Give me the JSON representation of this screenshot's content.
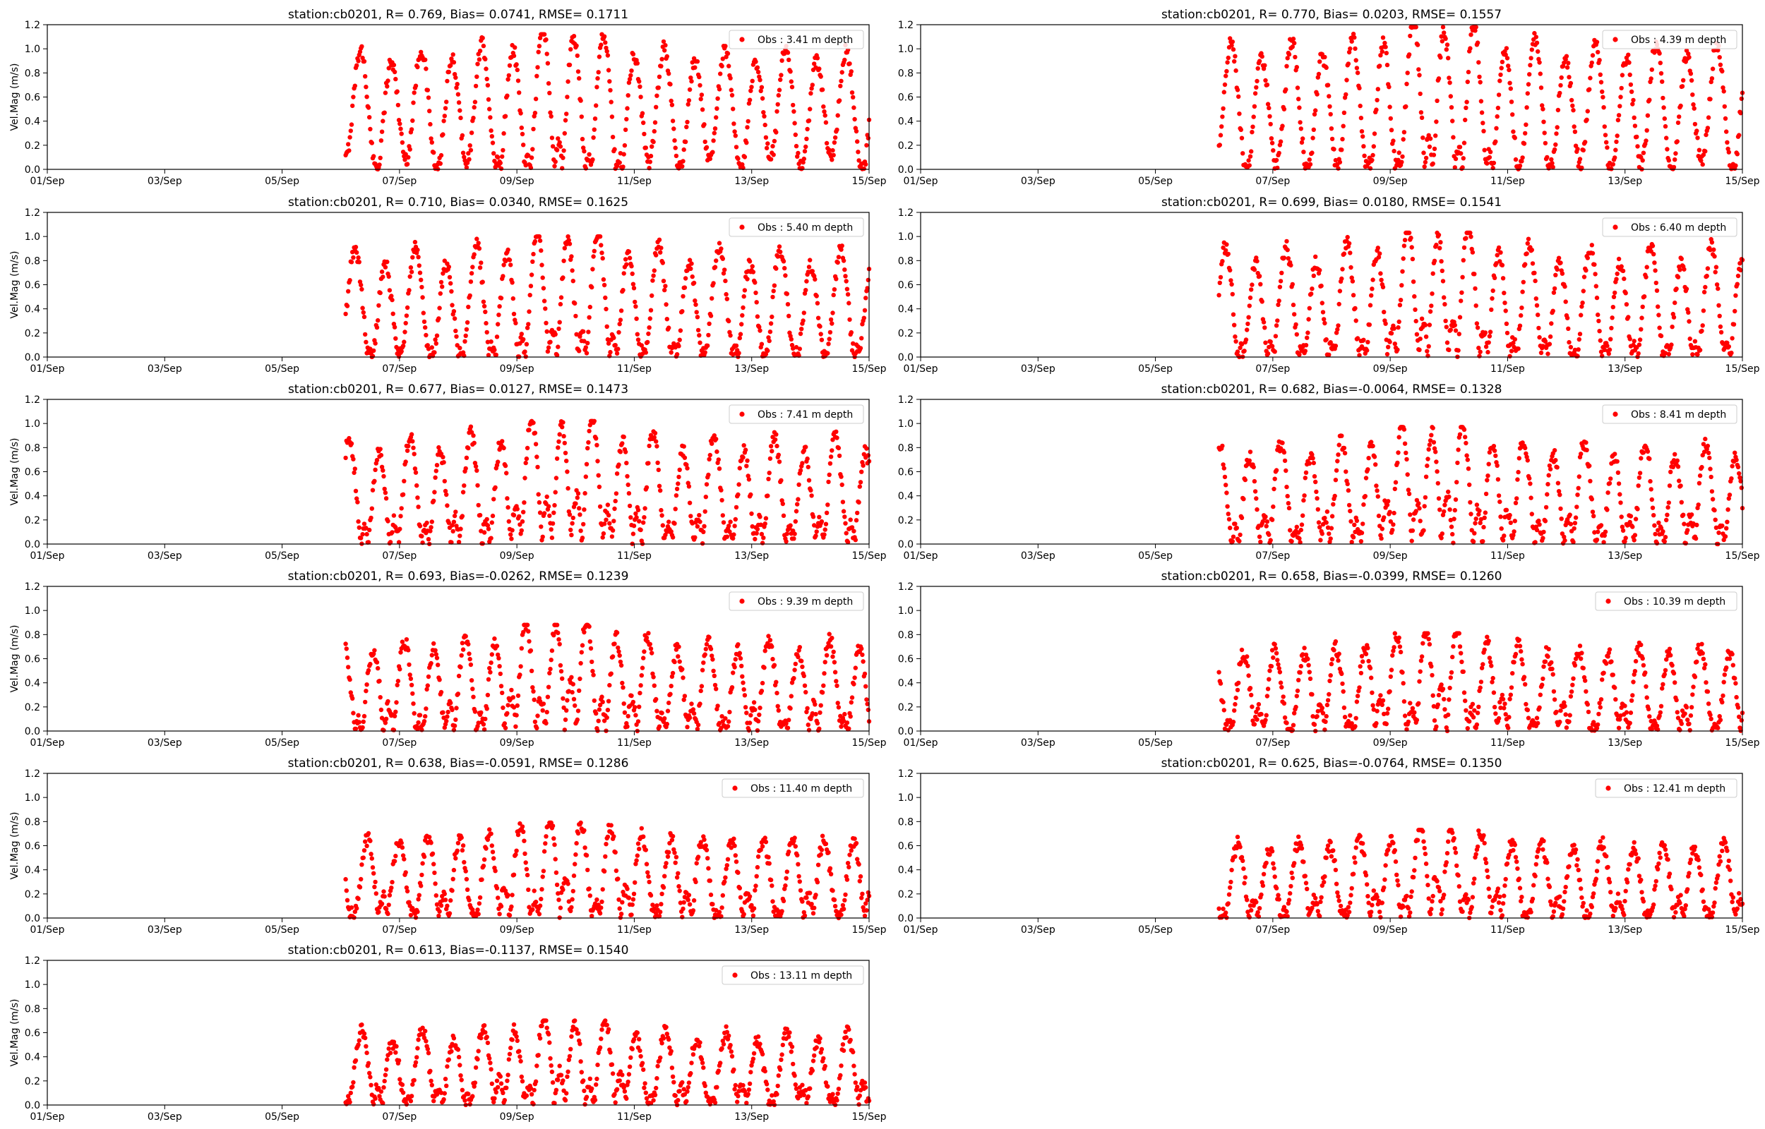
{
  "figure": {
    "background": "#ffffff",
    "marker_color": "#ff0000",
    "frame_color": "#000000"
  },
  "chart_data": [
    {
      "type": "scatter",
      "title": "station:cb0201, R= 0.769, Bias= 0.0741, RMSE= 0.1711",
      "xlabel": "",
      "ylabel": "Vel.Mag (m/s)",
      "xlim": [
        "01/Sep",
        "15/Sep"
      ],
      "ylim": [
        0,
        1.2
      ],
      "xticks": [
        "01/Sep",
        "03/Sep",
        "05/Sep",
        "07/Sep",
        "09/Sep",
        "11/Sep",
        "13/Sep",
        "15/Sep"
      ],
      "yticks": [
        "0.0",
        "0.2",
        "0.4",
        "0.6",
        "0.8",
        "1.0",
        "1.2"
      ],
      "legend": "top-right",
      "series": [
        {
          "name": "Obs : 3.41 m depth",
          "marker": "dot",
          "color": "#ff0000",
          "x_start": "06/Sep 02:00",
          "x_end": "15/Sep 00:00",
          "range": [
            0.0,
            1.12
          ],
          "mean": 0.49
        }
      ]
    },
    {
      "type": "scatter",
      "title": "station:cb0201, R= 0.770, Bias= 0.0203, RMSE= 0.1557",
      "xlabel": "",
      "ylabel": "",
      "xlim": [
        "01/Sep",
        "15/Sep"
      ],
      "ylim": [
        0,
        1.2
      ],
      "xticks": [
        "01/Sep",
        "03/Sep",
        "05/Sep",
        "07/Sep",
        "09/Sep",
        "11/Sep",
        "13/Sep",
        "15/Sep"
      ],
      "yticks": [
        "0.0",
        "0.2",
        "0.4",
        "0.6",
        "0.8",
        "1.0",
        "1.2"
      ],
      "legend": "top-right",
      "series": [
        {
          "name": "Obs : 4.39 m depth",
          "marker": "dot",
          "color": "#ff0000",
          "x_start": "06/Sep 02:00",
          "x_end": "15/Sep 00:00",
          "range": [
            0.0,
            1.18
          ],
          "mean": 0.5
        }
      ]
    },
    {
      "type": "scatter",
      "title": "station:cb0201, R= 0.710, Bias= 0.0340, RMSE= 0.1625",
      "xlabel": "",
      "ylabel": "Vel.Mag (m/s)",
      "xlim": [
        "01/Sep",
        "15/Sep"
      ],
      "ylim": [
        0,
        1.2
      ],
      "xticks": [
        "01/Sep",
        "03/Sep",
        "05/Sep",
        "07/Sep",
        "09/Sep",
        "11/Sep",
        "13/Sep",
        "15/Sep"
      ],
      "yticks": [
        "0.0",
        "0.2",
        "0.4",
        "0.6",
        "0.8",
        "1.0",
        "1.2"
      ],
      "legend": "top-right",
      "series": [
        {
          "name": "Obs : 5.40 m depth",
          "marker": "dot",
          "color": "#ff0000",
          "x_start": "06/Sep 02:00",
          "x_end": "15/Sep 00:00",
          "range": [
            0.0,
            1.0
          ],
          "mean": 0.4
        }
      ]
    },
    {
      "type": "scatter",
      "title": "station:cb0201, R= 0.699, Bias= 0.0180, RMSE= 0.1541",
      "xlabel": "",
      "ylabel": "",
      "xlim": [
        "01/Sep",
        "15/Sep"
      ],
      "ylim": [
        0,
        1.2
      ],
      "xticks": [
        "01/Sep",
        "03/Sep",
        "05/Sep",
        "07/Sep",
        "09/Sep",
        "11/Sep",
        "13/Sep",
        "15/Sep"
      ],
      "yticks": [
        "0.0",
        "0.2",
        "0.4",
        "0.6",
        "0.8",
        "1.0",
        "1.2"
      ],
      "legend": "top-right",
      "series": [
        {
          "name": "Obs : 6.40 m depth",
          "marker": "dot",
          "color": "#ff0000",
          "x_start": "06/Sep 02:00",
          "x_end": "15/Sep 00:00",
          "range": [
            0.0,
            1.03
          ],
          "mean": 0.38
        }
      ]
    },
    {
      "type": "scatter",
      "title": "station:cb0201, R= 0.677, Bias= 0.0127, RMSE= 0.1473",
      "xlabel": "",
      "ylabel": "Vel.Mag (m/s)",
      "xlim": [
        "01/Sep",
        "15/Sep"
      ],
      "ylim": [
        0,
        1.2
      ],
      "xticks": [
        "01/Sep",
        "03/Sep",
        "05/Sep",
        "07/Sep",
        "09/Sep",
        "11/Sep",
        "13/Sep",
        "15/Sep"
      ],
      "yticks": [
        "0.0",
        "0.2",
        "0.4",
        "0.6",
        "0.8",
        "1.0",
        "1.2"
      ],
      "legend": "top-right",
      "series": [
        {
          "name": "Obs : 7.41 m depth",
          "marker": "dot",
          "color": "#ff0000",
          "x_start": "06/Sep 02:00",
          "x_end": "15/Sep 00:00",
          "range": [
            0.0,
            1.02
          ],
          "mean": 0.33
        }
      ]
    },
    {
      "type": "scatter",
      "title": "station:cb0201, R= 0.682, Bias=-0.0064, RMSE= 0.1328",
      "xlabel": "",
      "ylabel": "",
      "xlim": [
        "01/Sep",
        "15/Sep"
      ],
      "ylim": [
        0,
        1.2
      ],
      "xticks": [
        "01/Sep",
        "03/Sep",
        "05/Sep",
        "07/Sep",
        "09/Sep",
        "11/Sep",
        "13/Sep",
        "15/Sep"
      ],
      "yticks": [
        "0.0",
        "0.2",
        "0.4",
        "0.6",
        "0.8",
        "1.0",
        "1.2"
      ],
      "legend": "top-right",
      "series": [
        {
          "name": "Obs : 8.41 m depth",
          "marker": "dot",
          "color": "#ff0000",
          "x_start": "06/Sep 02:00",
          "x_end": "15/Sep 00:00",
          "range": [
            0.0,
            0.97
          ],
          "mean": 0.3
        }
      ]
    },
    {
      "type": "scatter",
      "title": "station:cb0201, R= 0.693, Bias=-0.0262, RMSE= 0.1239",
      "xlabel": "",
      "ylabel": "Vel.Mag (m/s)",
      "xlim": [
        "01/Sep",
        "15/Sep"
      ],
      "ylim": [
        0,
        1.2
      ],
      "xticks": [
        "01/Sep",
        "03/Sep",
        "05/Sep",
        "07/Sep",
        "09/Sep",
        "11/Sep",
        "13/Sep",
        "15/Sep"
      ],
      "yticks": [
        "0.0",
        "0.2",
        "0.4",
        "0.6",
        "0.8",
        "1.0",
        "1.2"
      ],
      "legend": "top-right",
      "series": [
        {
          "name": "Obs : 9.39 m depth",
          "marker": "dot",
          "color": "#ff0000",
          "x_start": "06/Sep 02:00",
          "x_end": "15/Sep 00:00",
          "range": [
            0.0,
            0.88
          ],
          "mean": 0.28
        }
      ]
    },
    {
      "type": "scatter",
      "title": "station:cb0201, R= 0.658, Bias=-0.0399, RMSE= 0.1260",
      "xlabel": "",
      "ylabel": "",
      "xlim": [
        "01/Sep",
        "15/Sep"
      ],
      "ylim": [
        0,
        1.2
      ],
      "xticks": [
        "01/Sep",
        "03/Sep",
        "05/Sep",
        "07/Sep",
        "09/Sep",
        "11/Sep",
        "13/Sep",
        "15/Sep"
      ],
      "yticks": [
        "0.0",
        "0.2",
        "0.4",
        "0.6",
        "0.8",
        "1.0",
        "1.2"
      ],
      "legend": "top-right",
      "series": [
        {
          "name": "Obs : 10.39 m depth",
          "marker": "dot",
          "color": "#ff0000",
          "x_start": "06/Sep 02:00",
          "x_end": "15/Sep 00:00",
          "range": [
            0.0,
            0.81
          ],
          "mean": 0.27
        }
      ]
    },
    {
      "type": "scatter",
      "title": "station:cb0201, R= 0.638, Bias=-0.0591, RMSE= 0.1286",
      "xlabel": "",
      "ylabel": "Vel.Mag (m/s)",
      "xlim": [
        "01/Sep",
        "15/Sep"
      ],
      "ylim": [
        0,
        1.2
      ],
      "xticks": [
        "01/Sep",
        "03/Sep",
        "05/Sep",
        "07/Sep",
        "09/Sep",
        "11/Sep",
        "13/Sep",
        "15/Sep"
      ],
      "yticks": [
        "0.0",
        "0.2",
        "0.4",
        "0.6",
        "0.8",
        "1.0",
        "1.2"
      ],
      "legend": "top-right",
      "series": [
        {
          "name": "Obs : 11.40 m depth",
          "marker": "dot",
          "color": "#ff0000",
          "x_start": "06/Sep 02:00",
          "x_end": "15/Sep 00:00",
          "range": [
            0.0,
            0.79
          ],
          "mean": 0.27
        }
      ]
    },
    {
      "type": "scatter",
      "title": "station:cb0201, R= 0.625, Bias=-0.0764, RMSE= 0.1350",
      "xlabel": "",
      "ylabel": "",
      "xlim": [
        "01/Sep",
        "15/Sep"
      ],
      "ylim": [
        0,
        1.2
      ],
      "xticks": [
        "01/Sep",
        "03/Sep",
        "05/Sep",
        "07/Sep",
        "09/Sep",
        "11/Sep",
        "13/Sep",
        "15/Sep"
      ],
      "yticks": [
        "0.0",
        "0.2",
        "0.4",
        "0.6",
        "0.8",
        "1.0",
        "1.2"
      ],
      "legend": "top-right",
      "series": [
        {
          "name": "Obs : 12.41 m depth",
          "marker": "dot",
          "color": "#ff0000",
          "x_start": "06/Sep 02:00",
          "x_end": "15/Sep 00:00",
          "range": [
            0.0,
            0.73
          ],
          "mean": 0.25
        }
      ]
    },
    {
      "type": "scatter",
      "title": "station:cb0201, R= 0.613, Bias=-0.1137, RMSE= 0.1540",
      "xlabel": "",
      "ylabel": "Vel.Mag (m/s)",
      "xlim": [
        "01/Sep",
        "15/Sep"
      ],
      "ylim": [
        0,
        1.2
      ],
      "xticks": [
        "01/Sep",
        "03/Sep",
        "05/Sep",
        "07/Sep",
        "09/Sep",
        "11/Sep",
        "13/Sep",
        "15/Sep"
      ],
      "yticks": [
        "0.0",
        "0.2",
        "0.4",
        "0.6",
        "0.8",
        "1.0",
        "1.2"
      ],
      "legend": "top-right",
      "series": [
        {
          "name": "Obs : 13.11 m depth",
          "marker": "dot",
          "color": "#ff0000",
          "x_start": "06/Sep 02:00",
          "x_end": "15/Sep 00:00",
          "range": [
            0.0,
            0.7
          ],
          "mean": 0.24
        }
      ]
    }
  ]
}
